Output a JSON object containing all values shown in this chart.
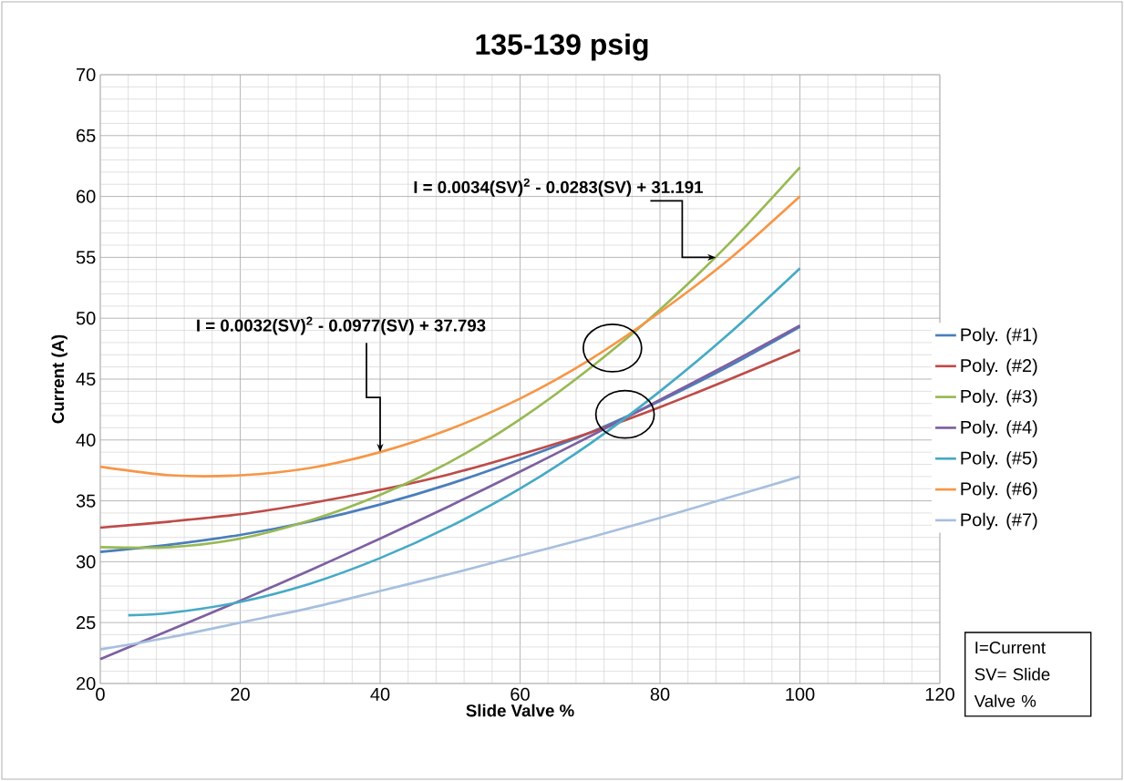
{
  "chart_data": {
    "type": "line",
    "title": "135-139 psig",
    "xlabel": "Slide Valve %",
    "ylabel": "Current (A)",
    "x": [
      0,
      10,
      20,
      30,
      40,
      50,
      60,
      70,
      80,
      90,
      100
    ],
    "series": [
      {
        "name": "Poly. (#1)",
        "color": "#4a7ebb",
        "values": [
          30.8,
          31.4,
          32.2,
          33.3,
          34.7,
          36.4,
          38.4,
          40.6,
          43.2,
          46.1,
          49.3
        ]
      },
      {
        "name": "Poly. (#2)",
        "color": "#be4b48",
        "values": [
          32.8,
          33.3,
          33.9,
          34.8,
          35.9,
          37.2,
          38.8,
          40.6,
          42.7,
          45.0,
          47.4
        ]
      },
      {
        "name": "Poly. (#3)",
        "color": "#98b954",
        "values": [
          31.2,
          31.2,
          31.9,
          33.4,
          35.5,
          38.2,
          41.7,
          45.9,
          50.7,
          56.2,
          62.4
        ]
      },
      {
        "name": "Poly. (#4)",
        "color": "#7d60a0",
        "values": [
          22.0,
          24.4,
          26.8,
          29.3,
          31.9,
          34.6,
          37.4,
          40.3,
          43.3,
          46.3,
          49.4
        ]
      },
      {
        "name": "Poly. (#5)",
        "color": "#46aac5",
        "x": [
          4,
          10,
          20,
          30,
          40,
          50,
          60,
          70,
          80,
          90,
          100
        ],
        "values": [
          25.6,
          25.8,
          26.7,
          28.2,
          30.3,
          32.9,
          36.0,
          39.7,
          44.0,
          48.8,
          54.1
        ]
      },
      {
        "name": "Poly. (#6)",
        "color": "#f79646",
        "values": [
          37.8,
          37.1,
          37.1,
          37.7,
          39.0,
          40.9,
          43.4,
          46.6,
          50.5,
          54.9,
          60.0
        ]
      },
      {
        "name": "Poly. (#7)",
        "color": "#a7bfde",
        "values": [
          22.8,
          23.8,
          25.0,
          26.2,
          27.6,
          29.0,
          30.5,
          32.0,
          33.6,
          35.3,
          37.0
        ]
      }
    ],
    "xlim": [
      0,
      120
    ],
    "ylim": [
      20,
      70
    ],
    "xticks": [
      0,
      20,
      40,
      60,
      80,
      100,
      120
    ],
    "yticks": [
      20,
      25,
      30,
      35,
      40,
      45,
      50,
      55,
      60,
      65,
      70
    ],
    "grid": true,
    "legend": "right",
    "marker": "none",
    "line_style": "solid",
    "annotations": [
      {
        "text": "I = 0.0032(SV)$^{2}$ - 0.0977(SV) + 37.793",
        "x": 40,
        "y": 39
      },
      {
        "text": "I = 0.0034(SV)$^{2}$ - 0.0283(SV) + 31.191",
        "x": 88,
        "y": 55
      },
      "I=Current SV= Slide Valve %"
    ]
  }
}
